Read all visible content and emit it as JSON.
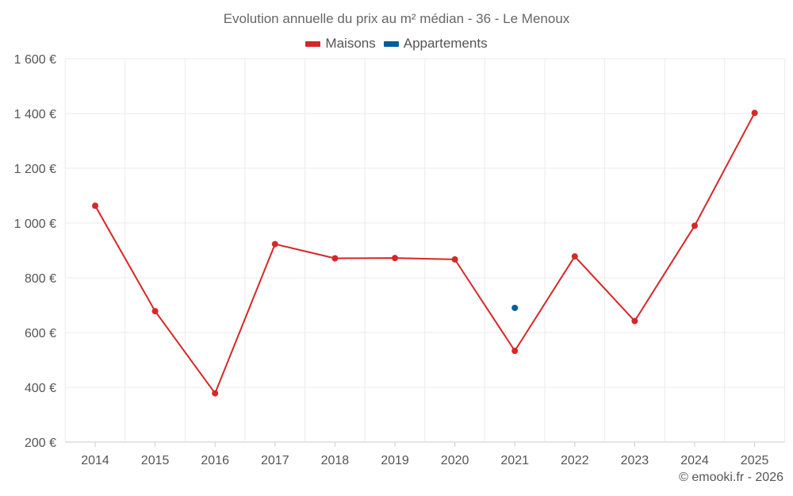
{
  "chart_data": {
    "type": "line",
    "title": "Evolution annuelle du prix au m² médian - 36 - Le Menoux",
    "categories": [
      "2014",
      "2015",
      "2016",
      "2017",
      "2018",
      "2019",
      "2020",
      "2021",
      "2022",
      "2023",
      "2024",
      "2025"
    ],
    "series": [
      {
        "name": "Maisons",
        "color": "#d62728",
        "values": [
          1063,
          678,
          378,
          923,
          871,
          872,
          867,
          533,
          878,
          642,
          990,
          1402
        ]
      },
      {
        "name": "Appartements",
        "color": "#005f99",
        "values": [
          null,
          null,
          null,
          null,
          null,
          null,
          null,
          690,
          null,
          null,
          null,
          null
        ]
      }
    ],
    "y_ticks": [
      "200 €",
      "400 €",
      "600 €",
      "800 €",
      "1 000 €",
      "1 200 €",
      "1 400 €",
      "1 600 €"
    ],
    "ylim": [
      200,
      1600
    ],
    "grid": true,
    "legend": "top-center"
  },
  "credit": "© emooki.fr - 2026"
}
